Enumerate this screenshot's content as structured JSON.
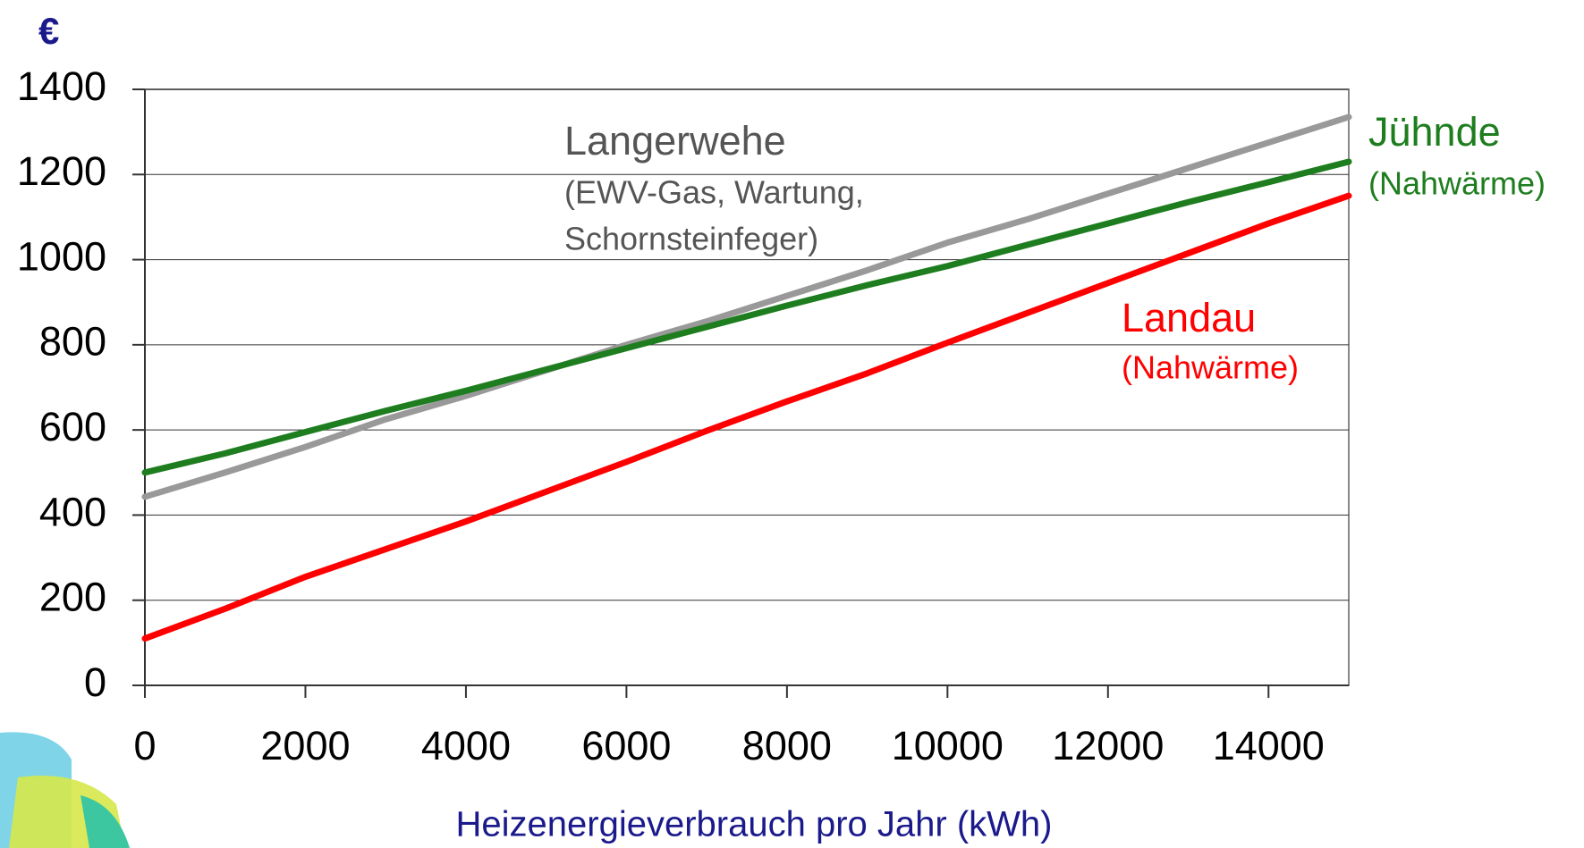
{
  "chart_data": {
    "type": "line",
    "y_label": "€",
    "x_label": "Heizenergieverbrauch pro Jahr (kWh)",
    "x": [
      0,
      1000,
      2000,
      3000,
      4000,
      5000,
      6000,
      7000,
      8000,
      9000,
      10000,
      11000,
      12000,
      13000,
      14000,
      15000
    ],
    "series": [
      {
        "name": "Langerwehe",
        "note": [
          "(EWV-Gas, Wartung,",
          "Schornsteinfeger)"
        ],
        "color": "#999999",
        "values": [
          443,
          500,
          560,
          625,
          680,
          740,
          800,
          855,
          915,
          975,
          1040,
          1095,
          1155,
          1215,
          1275,
          1335
        ]
      },
      {
        "name": "Jühnde",
        "note": [
          "(Nahwärme)"
        ],
        "color": "#1e7d1e",
        "values": [
          500,
          545,
          595,
          645,
          692,
          742,
          792,
          842,
          892,
          940,
          985,
          1035,
          1085,
          1135,
          1182,
          1230
        ]
      },
      {
        "name": "Landau",
        "note": [
          "(Nahwärme)"
        ],
        "color": "#ff0000",
        "values": [
          110,
          180,
          255,
          320,
          385,
          455,
          525,
          598,
          667,
          733,
          805,
          875,
          945,
          1015,
          1085,
          1150
        ]
      }
    ],
    "xlim": [
      0,
      15000
    ],
    "xticks": [
      0,
      2000,
      4000,
      6000,
      8000,
      10000,
      12000,
      14000
    ],
    "ylim": [
      0,
      1400
    ],
    "yticks": [
      0,
      200,
      400,
      600,
      800,
      1000,
      1200,
      1400
    ],
    "grid": true
  }
}
